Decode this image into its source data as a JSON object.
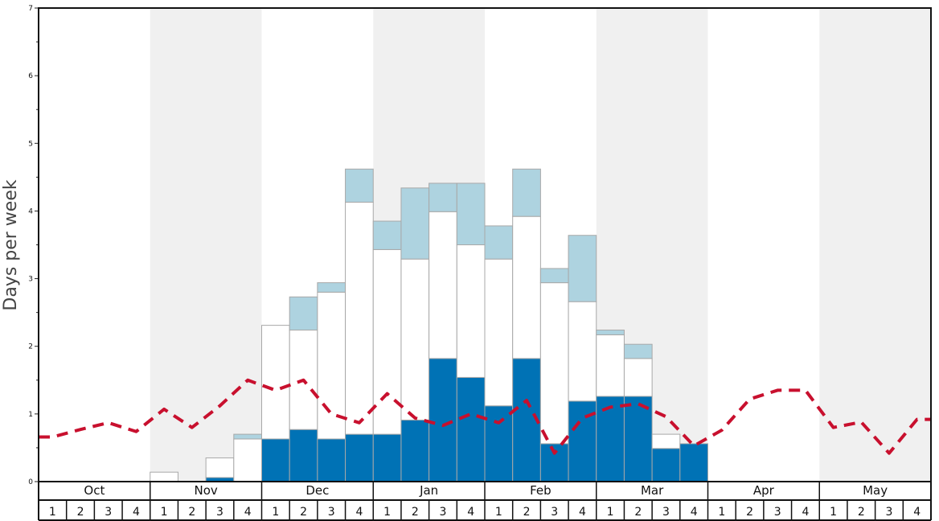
{
  "chart_data": {
    "type": "bar",
    "stacked": true,
    "ylabel": "Days per week",
    "xlabel": "",
    "ylim": [
      0,
      7
    ],
    "ytick_labels": [
      "0",
      "1",
      "2",
      "3",
      "4",
      "5",
      "6",
      "7"
    ],
    "months": [
      "Oct",
      "Nov",
      "Dec",
      "Jan",
      "Feb",
      "Mar",
      "Apr",
      "May"
    ],
    "week_labels": [
      "1",
      "2",
      "3",
      "4"
    ],
    "shaded_months": [
      "Nov",
      "Jan",
      "Mar",
      "May"
    ],
    "categories": [
      "Oct 1",
      "Oct 2",
      "Oct 3",
      "Oct 4",
      "Nov 1",
      "Nov 2",
      "Nov 3",
      "Nov 4",
      "Dec 1",
      "Dec 2",
      "Dec 3",
      "Dec 4",
      "Jan 1",
      "Jan 2",
      "Jan 3",
      "Jan 4",
      "Feb 1",
      "Feb 2",
      "Feb 3",
      "Feb 4",
      "Mar 1",
      "Mar 2",
      "Mar 3",
      "Mar 4",
      "Apr 1",
      "Apr 2",
      "Apr 3",
      "Apr 4",
      "May 1",
      "May 2",
      "May 3",
      "May 4"
    ],
    "series": [
      {
        "values": [
          0,
          0,
          0,
          0,
          0,
          0,
          0.06,
          0,
          0.63,
          0.77,
          0.63,
          0.7,
          0.7,
          0.91,
          1.82,
          1.54,
          1.12,
          1.82,
          0.56,
          1.19,
          1.26,
          1.26,
          0.49,
          0.56,
          0,
          0,
          0,
          0,
          0,
          0,
          0,
          0
        ],
        "color": "#0072b5"
      },
      {
        "values": [
          0,
          0,
          0,
          0,
          0.14,
          0,
          0.29,
          0.63,
          1.68,
          1.47,
          2.17,
          3.43,
          2.73,
          2.38,
          2.17,
          1.96,
          2.17,
          2.1,
          2.38,
          1.47,
          0.91,
          0.56,
          0.21,
          0,
          0,
          0,
          0,
          0,
          0,
          0,
          0,
          0
        ],
        "color": "#ffffff"
      },
      {
        "values": [
          0,
          0,
          0,
          0,
          0,
          0,
          0,
          0.07,
          0,
          0.49,
          0.14,
          0.49,
          0.42,
          1.05,
          0.42,
          0.91,
          0.49,
          0.7,
          0.21,
          0.98,
          0.07,
          0.21,
          0,
          0,
          0,
          0,
          0,
          0,
          0,
          0,
          0,
          0
        ],
        "color": "#aed3e0"
      }
    ],
    "line": {
      "style": "dashed",
      "color": "#c8102e",
      "values": [
        0.66,
        0.77,
        0.87,
        0.74,
        1.07,
        0.8,
        1.12,
        1.5,
        1.35,
        1.5,
        1.0,
        0.87,
        1.3,
        0.94,
        0.83,
        1.0,
        0.87,
        1.2,
        0.42,
        0.94,
        1.1,
        1.15,
        0.96,
        0.53,
        0.76,
        1.22,
        1.35,
        1.35,
        0.8,
        0.88,
        0.42,
        0.92
      ]
    }
  }
}
